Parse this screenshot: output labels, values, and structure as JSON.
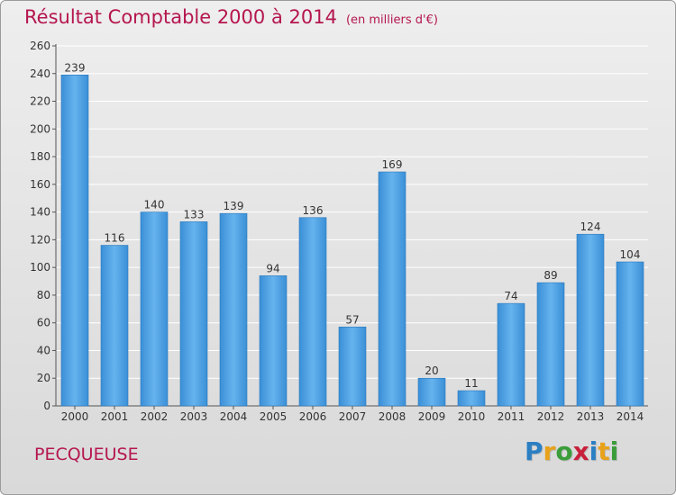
{
  "chart_data": {
    "type": "bar",
    "title": "Résultat Comptable 2000 à 2014",
    "unit_label": "(en milliers d'€)",
    "categories": [
      "2000",
      "2001",
      "2002",
      "2003",
      "2004",
      "2005",
      "2006",
      "2007",
      "2008",
      "2009",
      "2010",
      "2011",
      "2012",
      "2013",
      "2014"
    ],
    "values": [
      239,
      116,
      140,
      133,
      139,
      94,
      136,
      57,
      169,
      20,
      11,
      74,
      89,
      124,
      104
    ],
    "yticks": [
      0,
      20,
      40,
      60,
      80,
      100,
      120,
      140,
      160,
      180,
      200,
      220,
      240,
      260
    ],
    "ylim": [
      0,
      260
    ],
    "xlabel": "",
    "ylabel": "",
    "grid": true,
    "legend": "none",
    "bar_color": "#3a8fd6",
    "bar_color_light": "#66b3ee"
  },
  "footer": {
    "commune": "PECQUEUSE",
    "logo_letters": [
      {
        "ch": "P",
        "color": "#2b7fc3"
      },
      {
        "ch": "r",
        "color": "#e8a21a"
      },
      {
        "ch": "o",
        "color": "#3a9d3a"
      },
      {
        "ch": "x",
        "color": "#c8203b"
      },
      {
        "ch": "i",
        "color": "#2b7fc3"
      },
      {
        "ch": "t",
        "color": "#e8a21a"
      },
      {
        "ch": "i",
        "color": "#3a9d3a"
      }
    ]
  },
  "colors": {
    "accent": "#b5164e",
    "grid": "#ffffff",
    "axis_text": "#333333"
  }
}
